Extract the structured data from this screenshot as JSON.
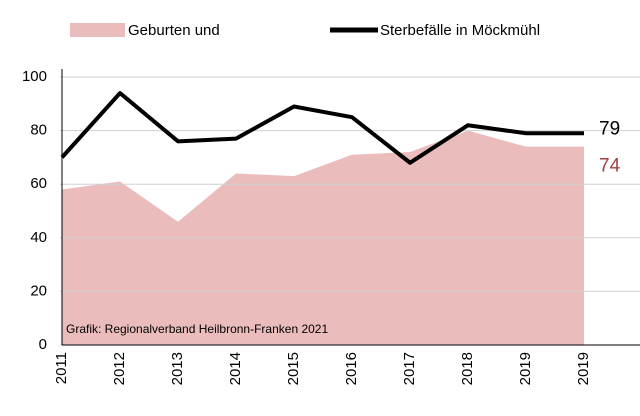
{
  "chart_data": {
    "type": "area_line",
    "categories": [
      "2011",
      "2012",
      "2013",
      "2014",
      "2015",
      "2016",
      "2017",
      "2018",
      "2019",
      "2019"
    ],
    "series": [
      {
        "name": "Geburten und",
        "color": "#ebbcbc",
        "kind": "area",
        "values": [
          58,
          61,
          46,
          64,
          63,
          71,
          72,
          80,
          74,
          74
        ],
        "label_color": "#a0413e"
      },
      {
        "name": "Sterbefälle in Möckmühl",
        "color": "#000000",
        "kind": "line",
        "values": [
          70,
          94,
          76,
          77,
          89,
          85,
          68,
          82,
          79,
          79
        ],
        "label_color": "#000000"
      }
    ],
    "ylim": [
      0,
      100
    ],
    "yticks": [
      0,
      20,
      40,
      60,
      80,
      100
    ],
    "grid": true,
    "annotation": "Grafik: Regionalverband Heilbronn-Franken 2021"
  }
}
